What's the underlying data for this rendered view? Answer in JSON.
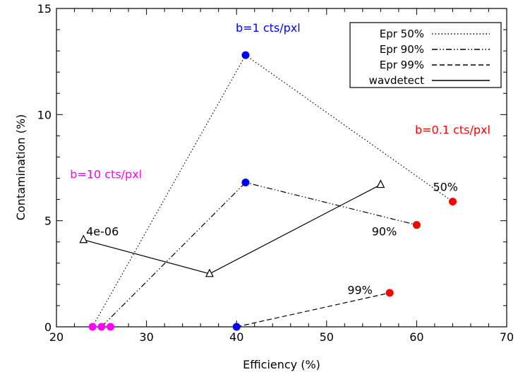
{
  "chart_data": {
    "type": "line",
    "xlabel": "Efficiency (%)",
    "ylabel": "Contamination (%)",
    "xlim": [
      20,
      70
    ],
    "ylim": [
      0,
      15
    ],
    "xticks": [
      20,
      30,
      40,
      50,
      60,
      70
    ],
    "yticks": [
      0,
      5,
      10,
      15
    ],
    "grid": false,
    "legend_position": "top-right",
    "legend": [
      {
        "label": "Epr 50%",
        "style": "dotted"
      },
      {
        "label": "Epr 90%",
        "style": "dash-dot-dot"
      },
      {
        "label": "Epr 99%",
        "style": "dashed"
      },
      {
        "label": "wavdetect",
        "style": "solid"
      }
    ],
    "series": [
      {
        "name": "Epr 50%",
        "style": "dotted",
        "x": [
          24,
          41,
          64
        ],
        "y": [
          0,
          12.8,
          5.9
        ]
      },
      {
        "name": "Epr 90%",
        "style": "dash-dot-dot",
        "x": [
          25,
          41,
          60
        ],
        "y": [
          0,
          6.8,
          4.8
        ]
      },
      {
        "name": "Epr 99%",
        "style": "dashed",
        "x": [
          40,
          57
        ],
        "y": [
          0,
          1.6
        ]
      },
      {
        "name": "wavdetect",
        "style": "solid",
        "marker": "triangle",
        "x": [
          23,
          37,
          56
        ],
        "y": [
          4.1,
          2.5,
          6.7
        ]
      }
    ],
    "points": [
      {
        "x": 24,
        "y": 0,
        "color": "#ff00ff"
      },
      {
        "x": 25,
        "y": 0,
        "color": "#ff00ff"
      },
      {
        "x": 26,
        "y": 0,
        "color": "#ff00ff"
      },
      {
        "x": 41,
        "y": 12.8,
        "color": "#0000ff"
      },
      {
        "x": 41,
        "y": 6.8,
        "color": "#0000ff"
      },
      {
        "x": 40,
        "y": 0,
        "color": "#0000ff"
      },
      {
        "x": 64,
        "y": 5.9,
        "color": "#ff0000"
      },
      {
        "x": 60,
        "y": 4.8,
        "color": "#ff0000"
      },
      {
        "x": 57,
        "y": 1.6,
        "color": "#ff0000"
      }
    ],
    "annotations": [
      {
        "text": "b=1 cts/pxl",
        "x": 43.5,
        "y": 13.9,
        "color": "#0000ff",
        "anchor": "middle"
      },
      {
        "text": "b=0.1 cts/pxl",
        "x": 64,
        "y": 9.1,
        "color": "#ff0000",
        "anchor": "middle"
      },
      {
        "text": "b=10 cts/pxl",
        "x": 25.5,
        "y": 7.0,
        "color": "#ff00ff",
        "anchor": "middle"
      },
      {
        "text": "4e-06",
        "x": 23.3,
        "y": 4.3,
        "color": "#000000",
        "anchor": "start"
      },
      {
        "text": "50%",
        "x": 63.2,
        "y": 6.4,
        "color": "#000000",
        "anchor": "middle"
      },
      {
        "text": "90%",
        "x": 57.8,
        "y": 4.3,
        "color": "#000000",
        "anchor": "end"
      },
      {
        "text": "99%",
        "x": 55.1,
        "y": 1.55,
        "color": "#000000",
        "anchor": "end"
      }
    ]
  }
}
